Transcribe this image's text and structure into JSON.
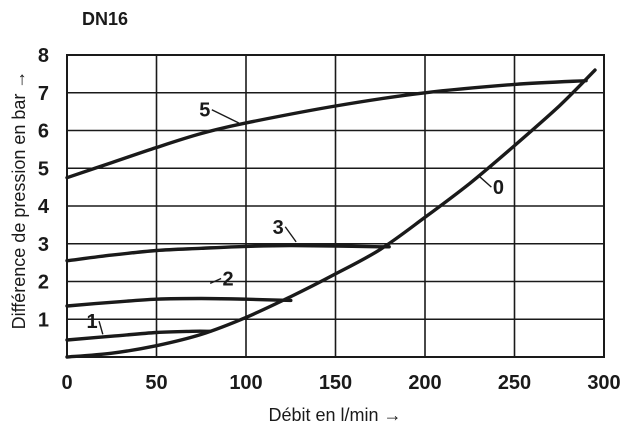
{
  "chart_data": {
    "type": "line",
    "title": "DN16",
    "xlabel": "Débit en l/min →",
    "ylabel": "Différence de pression en bar →",
    "xlim": [
      0,
      300
    ],
    "ylim": [
      0,
      8
    ],
    "x_ticks": [
      "0",
      "50",
      "100",
      "150",
      "200",
      "250",
      "300"
    ],
    "y_ticks": [
      "1",
      "2",
      "3",
      "4",
      "5",
      "6",
      "7",
      "8"
    ],
    "grid": true,
    "legend": "none",
    "series": [
      {
        "name": "0",
        "points": [
          [
            0,
            0
          ],
          [
            25,
            0.1
          ],
          [
            50,
            0.3
          ],
          [
            75,
            0.6
          ],
          [
            100,
            1.05
          ],
          [
            125,
            1.6
          ],
          [
            150,
            2.2
          ],
          [
            175,
            2.85
          ],
          [
            200,
            3.7
          ],
          [
            225,
            4.6
          ],
          [
            250,
            5.6
          ],
          [
            275,
            6.65
          ],
          [
            295,
            7.6
          ]
        ]
      },
      {
        "name": "1",
        "points": [
          [
            0,
            0.45
          ],
          [
            25,
            0.55
          ],
          [
            50,
            0.65
          ],
          [
            70,
            0.68
          ],
          [
            80,
            0.68
          ]
        ]
      },
      {
        "name": "2",
        "points": [
          [
            0,
            1.35
          ],
          [
            25,
            1.45
          ],
          [
            50,
            1.53
          ],
          [
            75,
            1.55
          ],
          [
            100,
            1.53
          ],
          [
            125,
            1.5
          ]
        ]
      },
      {
        "name": "3",
        "points": [
          [
            0,
            2.55
          ],
          [
            25,
            2.7
          ],
          [
            50,
            2.82
          ],
          [
            75,
            2.88
          ],
          [
            100,
            2.93
          ],
          [
            125,
            2.95
          ],
          [
            150,
            2.94
          ],
          [
            175,
            2.92
          ],
          [
            180,
            2.92
          ]
        ]
      },
      {
        "name": "5",
        "points": [
          [
            0,
            4.75
          ],
          [
            25,
            5.15
          ],
          [
            50,
            5.55
          ],
          [
            75,
            5.92
          ],
          [
            100,
            6.2
          ],
          [
            150,
            6.65
          ],
          [
            200,
            7.0
          ],
          [
            250,
            7.22
          ],
          [
            290,
            7.32
          ]
        ]
      }
    ],
    "curve_labels": [
      {
        "text": "0",
        "x": 241,
        "y": 4.5,
        "tx": 230,
        "ty": 4.8
      },
      {
        "text": "1",
        "x": 14,
        "y": 0.95,
        "tx": 20,
        "ty": 0.6
      },
      {
        "text": "2",
        "x": 90,
        "y": 2.08,
        "tx": 80,
        "ty": 1.95
      },
      {
        "text": "3",
        "x": 118,
        "y": 3.45,
        "tx": 128,
        "ty": 3.05
      },
      {
        "text": "5",
        "x": 77,
        "y": 6.55,
        "tx": 96,
        "ty": 6.2
      }
    ]
  }
}
